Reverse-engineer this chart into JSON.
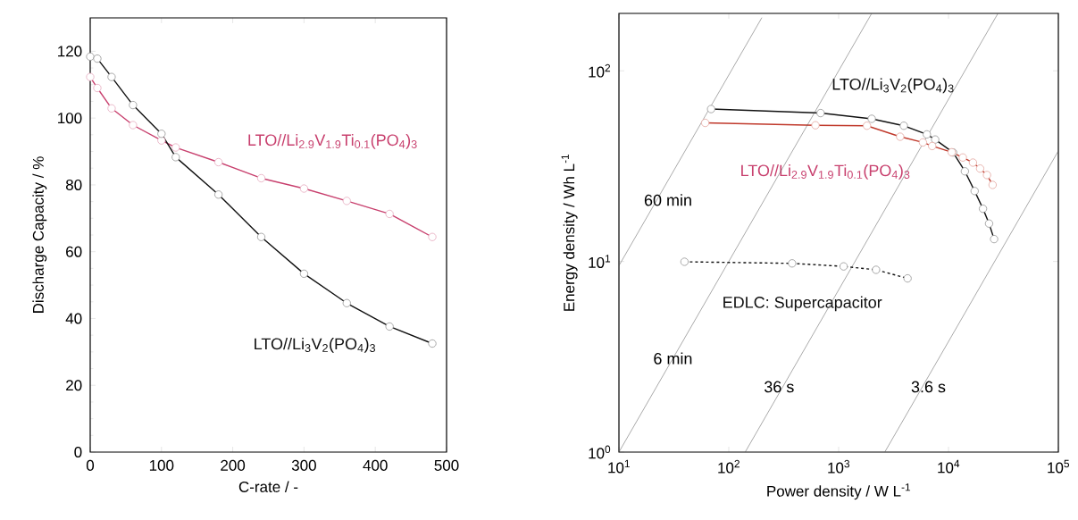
{
  "chart_data": [
    {
      "type": "line",
      "xlabel": "C-rate / -",
      "ylabel": "Discharge Capacity / %",
      "xlim": [
        0,
        500
      ],
      "ylim": [
        0,
        130
      ],
      "xticks": [
        0,
        100,
        200,
        300,
        400,
        500
      ],
      "yticks": [
        0,
        20,
        40,
        60,
        80,
        100,
        120
      ],
      "marker": "circle",
      "line_style": "solid",
      "grid": false,
      "legend": false,
      "x": [
        0,
        10,
        30,
        60,
        100,
        120,
        180,
        240,
        300,
        360,
        420,
        480
      ],
      "series": [
        {
          "name": "LTO//Li$_{2.9}$V$_{1.9}$Ti$_{0.1}$(PO$_{4}$)$_{3}$",
          "color": "#c8406e",
          "values": [
            112.3,
            109.0,
            102.9,
            97.9,
            93.3,
            91.2,
            86.8,
            82.0,
            78.9,
            75.2,
            71.3,
            64.4
          ]
        },
        {
          "name": "LTO//Li$_{3}$V$_{2}$(PO$_{4}$)$_{3}$",
          "color": "#111111",
          "values": [
            118.4,
            117.8,
            112.3,
            103.9,
            95.3,
            88.3,
            77.1,
            64.4,
            53.4,
            44.6,
            37.6,
            32.5
          ]
        }
      ]
    },
    {
      "type": "line",
      "xlabel": "Power density / W L$^{-1}$",
      "ylabel": "Energy density / Wh L$^{-1}$",
      "log": "xy",
      "xlim": [
        10,
        100000
      ],
      "ylim": [
        1,
        200
      ],
      "xticks": [
        {
          "value": 10,
          "label": "10$^{1}$"
        },
        {
          "value": 100,
          "label": "10$^{2}$"
        },
        {
          "value": 1000,
          "label": "10$^{3}$"
        },
        {
          "value": 10000,
          "label": "10$^{4}$"
        },
        {
          "value": 100000,
          "label": "10$^{5}$"
        }
      ],
      "yticks": [
        {
          "value": 1,
          "label": "10$^{0}$"
        },
        {
          "value": 10,
          "label": "10$^{1}$"
        },
        {
          "value": 100,
          "label": "10$^{2}$"
        }
      ],
      "marker": "circle",
      "line_style": "solid",
      "grid": false,
      "legend": false,
      "series": [
        {
          "name": "LTO//Li$_{3}$V$_{2}$(PO$_{4}$)$_{3}$",
          "color": "#111111",
          "x": [
            69,
            685,
            2000,
            3920,
            6350,
            7560,
            11000,
            14100,
            17300,
            20600,
            23400,
            26000
          ],
          "values": [
            63,
            60,
            56,
            51.5,
            46.4,
            43.6,
            37.3,
            29.7,
            23.4,
            18.9,
            15.8,
            13.1
          ]
        },
        {
          "name": "LTO//Li$_{2.9}$V$_{1.9}$Ti$_{0.1}$(PO$_{4}$)$_{3}$",
          "color": "#c0392b",
          "x": [
            61,
            615,
            1810,
            3630,
            5850,
            7100,
            10700,
            13500,
            16700,
            19400,
            22400,
            25200
          ],
          "values": [
            53.3,
            51.8,
            51.5,
            45.1,
            42.1,
            40.3,
            37.4,
            35.1,
            33.0,
            30.7,
            28.4,
            25.2
          ]
        },
        {
          "name": "EDLC: Supercapacitor",
          "color": "#111111",
          "line_style": "dashed",
          "x": [
            39.5,
            377,
            1110,
            2190,
            4240
          ],
          "values": [
            9.96,
            9.77,
            9.42,
            9.04,
            8.15
          ]
        },
        {
          "color": "#555555",
          "marker": "none",
          "x": [
            10,
            200
          ],
          "values": [
            9.5,
            190
          ]
        },
        {
          "color": "#555555",
          "marker": "none",
          "x": [
            10,
            2000
          ],
          "values": [
            1,
            200
          ]
        },
        {
          "color": "#555555",
          "marker": "none",
          "x": [
            141,
            28200
          ],
          "values": [
            1,
            200
          ]
        },
        {
          "color": "#555555",
          "marker": "none",
          "x": [
            2630,
            100000
          ],
          "values": [
            1,
            38
          ]
        }
      ],
      "annotations": [
        "60 min",
        "6 min",
        "36 s",
        "3.6 s"
      ]
    }
  ]
}
